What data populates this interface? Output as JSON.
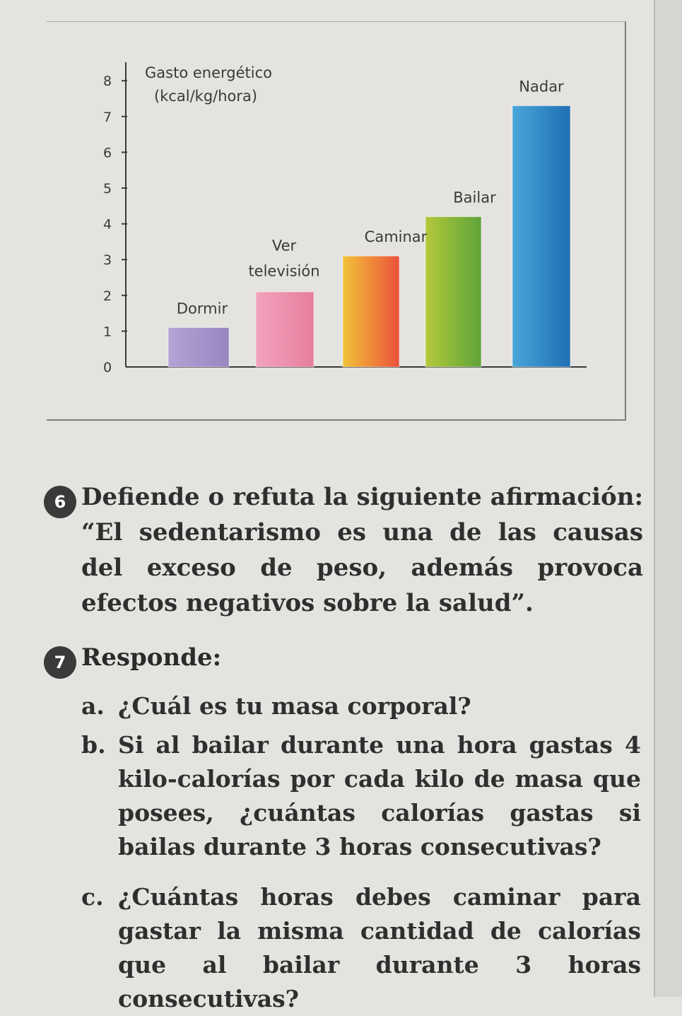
{
  "chart_data": {
    "type": "bar",
    "title": "Gasto energético",
    "ylabel": "(kcal/kg/hora)",
    "categories": [
      "Dormir",
      "Ver televisión",
      "Caminar",
      "Bailar",
      "Nadar"
    ],
    "values": [
      1.1,
      2.1,
      3.1,
      4.2,
      7.3
    ],
    "yticks": [
      0,
      1,
      2,
      3,
      4,
      5,
      6,
      7,
      8
    ],
    "ylim": [
      0,
      8
    ],
    "colors": [
      "#a592c9",
      "#ec8aa8",
      "#f19a3c",
      "#8bbb3a",
      "#2f86c6"
    ]
  },
  "question6": {
    "number": "6",
    "text": "Defiende o refuta la siguiente afirmación: “El sedentarismo es una de las causas del exceso de peso, además provoca efectos negativos sobre la salud”."
  },
  "question7": {
    "number": "7",
    "heading": "Responde:",
    "items": [
      {
        "letter": "a.",
        "text": "¿Cuál es tu masa corporal?"
      },
      {
        "letter": "b.",
        "text": "Si al bailar durante una hora gastas 4 kilo-calorías por cada kilo de masa que posees, ¿cuántas calorías gastas si bailas durante 3 horas consecutivas?"
      },
      {
        "letter": "c.",
        "text": "¿Cuántas horas debes caminar para gastar la misma cantidad de calorías que al bailar durante 3 horas consecutivas?"
      }
    ]
  }
}
